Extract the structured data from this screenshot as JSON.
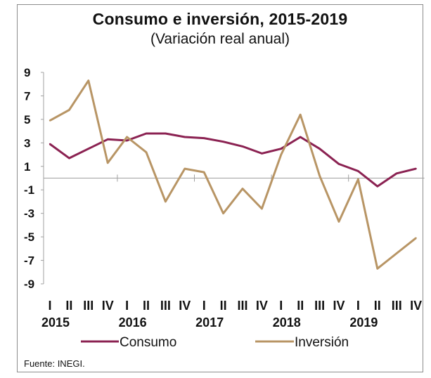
{
  "title": "Consumo e inversión, 2015-2019",
  "subtitle": "(Variación real anual)",
  "source": "Fuente: INEGI.",
  "colors": {
    "consumo": "#8b2252",
    "inversion": "#b89565",
    "axis": "#a0a0a0"
  },
  "chart_data": {
    "type": "line",
    "title": "Consumo e inversión, 2015-2019",
    "subtitle": "(Variación real anual)",
    "ylim": [
      -9,
      9
    ],
    "yticks": [
      "9",
      "7",
      "5",
      "3",
      "1",
      "-1",
      "-3",
      "-5",
      "-7",
      "-9"
    ],
    "quarters": [
      "I",
      "II",
      "III",
      "IV",
      "I",
      "II",
      "III",
      "IV",
      "I",
      "II",
      "III",
      "IV",
      "I",
      "II",
      "III",
      "IV",
      "I",
      "II",
      "III",
      "IV"
    ],
    "years": [
      "2015",
      "2016",
      "2017",
      "2018",
      "2019"
    ],
    "legend_position": "bottom",
    "series": [
      {
        "name": "Consumo",
        "color": "#8b2252",
        "values": [
          2.9,
          1.7,
          2.5,
          3.3,
          3.2,
          3.8,
          3.8,
          3.5,
          3.4,
          3.1,
          2.7,
          2.1,
          2.5,
          3.5,
          2.5,
          1.2,
          0.6,
          -0.7,
          0.4,
          0.8
        ]
      },
      {
        "name": "Inversión",
        "color": "#b89565",
        "values": [
          4.9,
          5.8,
          8.3,
          1.3,
          3.5,
          2.2,
          -2.0,
          0.8,
          0.5,
          -3.0,
          -0.9,
          -2.6,
          2.0,
          5.4,
          0.2,
          -3.7,
          -0.1,
          -7.7,
          -6.4,
          -5.1
        ]
      }
    ]
  }
}
